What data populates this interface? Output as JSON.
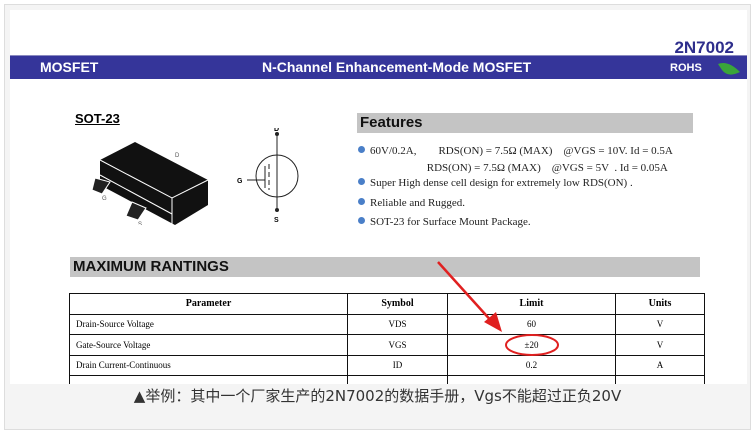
{
  "header": {
    "part_number": "2N7002",
    "category": "MOSFET",
    "title": "N-Channel  Enhancement-Mode MOSFET",
    "rohs": "ROHS",
    "brand_color": "#35359a"
  },
  "package": {
    "name": "SOT-23",
    "pins": {
      "d": "D",
      "g": "G",
      "s": "S"
    }
  },
  "features": {
    "heading": "Features",
    "items": [
      "60V/0.2A,        RDS(ON) = 7.5Ω (MAX)    @VGS = 10V. Id = 0.5A",
      "                         RDS(ON) = 7.5Ω (MAX)    @VGS = 5V  . Id = 0.05A",
      "Super High dense cell design for extremely low RDS(ON) .",
      "Reliable and Rugged.",
      "SOT-23 for Surface Mount Package."
    ]
  },
  "ratings": {
    "heading": "MAXIMUM RANTINGS",
    "columns": [
      "Parameter",
      "Symbol",
      "Limit",
      "Units"
    ],
    "rows": [
      [
        "Drain-Source Voltage",
        "VDS",
        "60",
        "V"
      ],
      [
        "Gate-Source Voltage",
        "VGS",
        "±20",
        "V"
      ],
      [
        "Drain Current-Continuous",
        "ID",
        "0.2",
        "A"
      ],
      [
        "",
        "",
        "",
        ""
      ]
    ]
  },
  "caption": "▲举例：其中一个厂家生产的2N7002的数据手册，Vgs不能超过正负20V"
}
